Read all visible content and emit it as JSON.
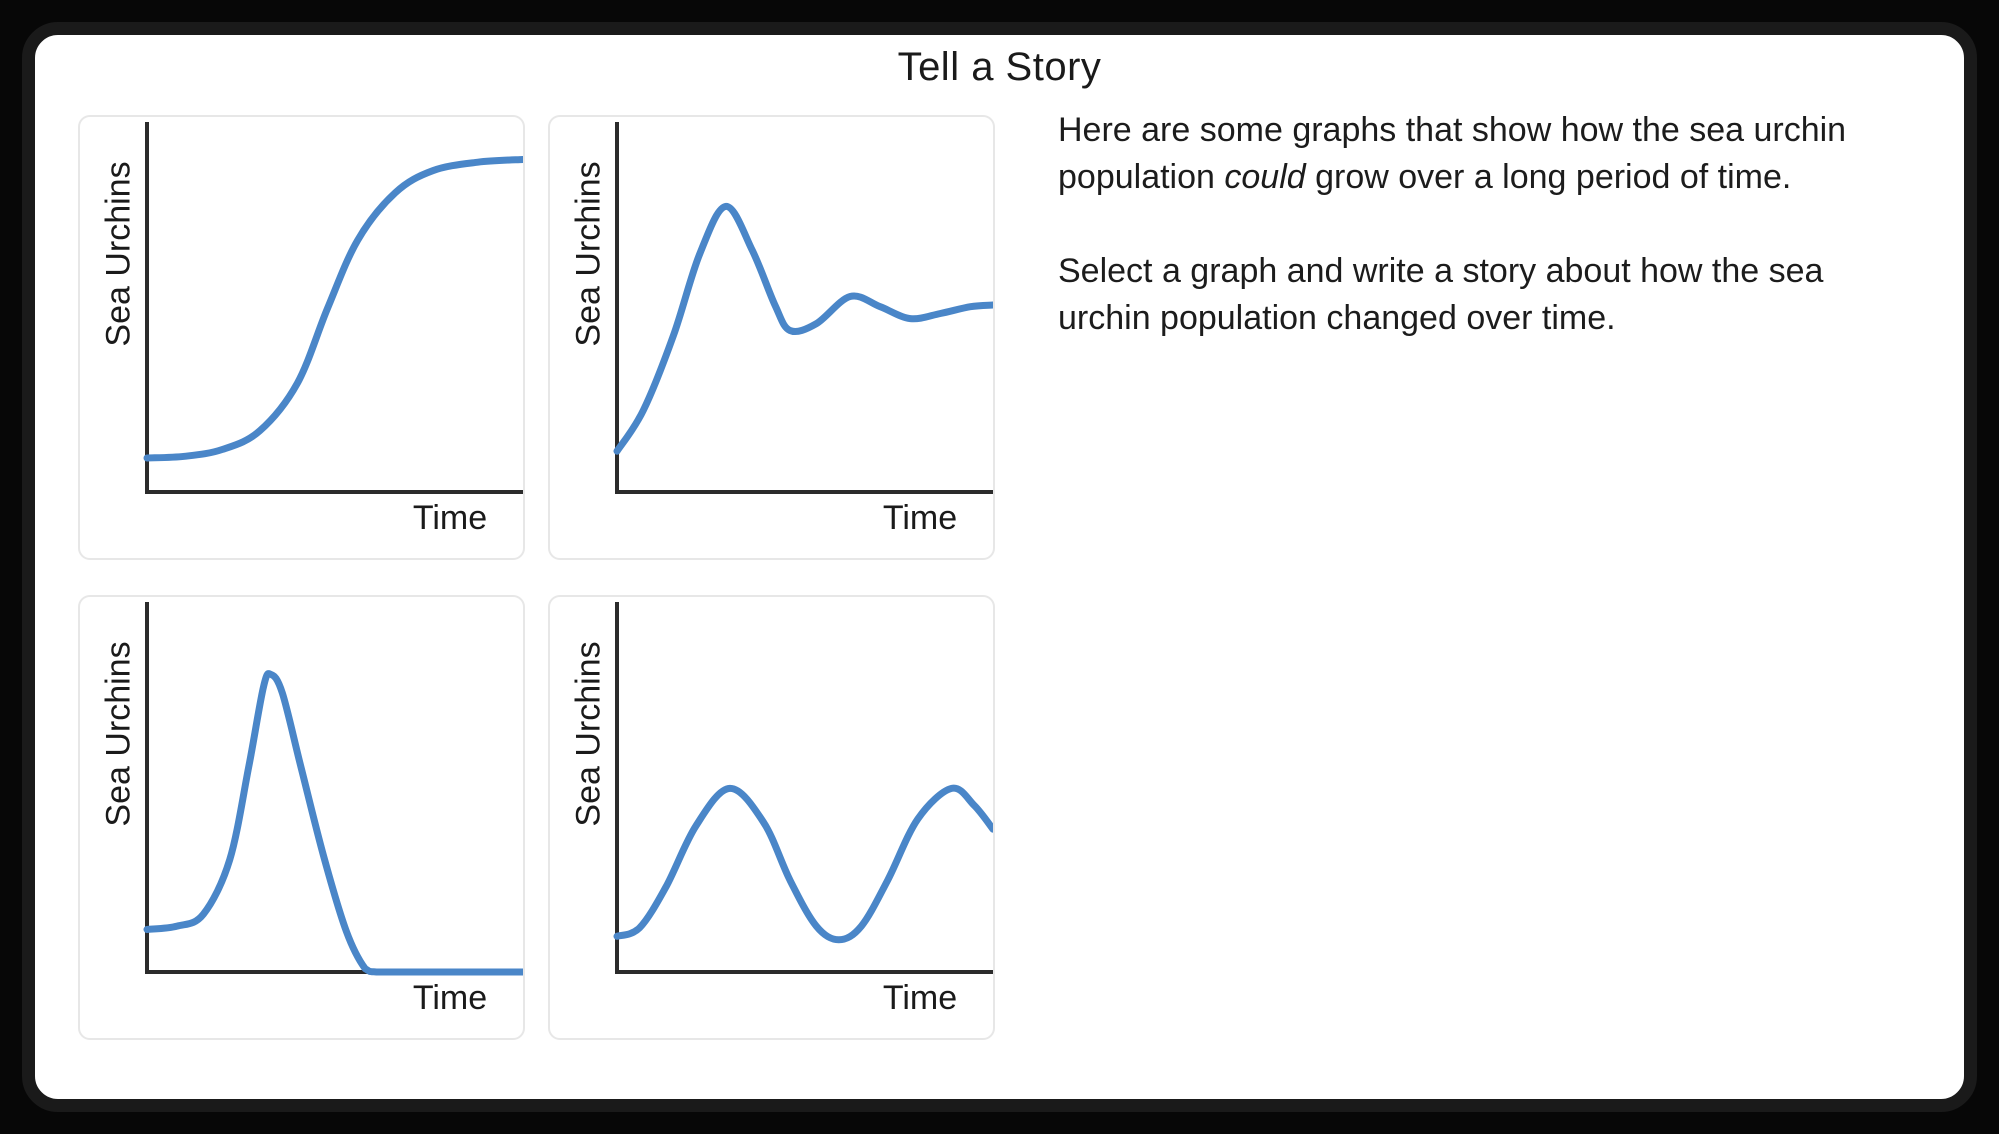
{
  "title": "Tell a Story",
  "instructions": {
    "paragraph1": {
      "before": "Here are some graphs that show how the sea urchin population ",
      "italic": "could",
      "after": " grow over a long period of time."
    },
    "paragraph2": "Select a graph and write a story about how the sea urchin population changed over time."
  },
  "accent_color": "#4a86c8",
  "axis_color": "#2b2b2b",
  "chart_data": [
    {
      "type": "line",
      "name": "logistic-growth",
      "xlabel": "Time",
      "ylabel": "Sea Urchins",
      "xlim": [
        0,
        100
      ],
      "ylim": [
        0,
        100
      ],
      "grid": false,
      "description": "Population starts low, grows slowly, then rapidly, then levels off at a maximum (S-curve).",
      "series": [
        {
          "name": "sea-urchin-population",
          "points": [
            [
              0,
              10
            ],
            [
              10,
              10.5
            ],
            [
              20,
              12.5
            ],
            [
              30,
              18
            ],
            [
              40,
              32
            ],
            [
              48,
              54
            ],
            [
              56,
              74
            ],
            [
              66,
              88
            ],
            [
              76,
              94.5
            ],
            [
              88,
              97
            ],
            [
              100,
              97.8
            ]
          ]
        }
      ]
    },
    {
      "type": "line",
      "name": "overshoot-damped-oscillation",
      "xlabel": "Time",
      "ylabel": "Sea Urchins",
      "xlim": [
        0,
        100
      ],
      "ylim": [
        0,
        100
      ],
      "grid": false,
      "description": "Population rises steeply, overshoots to a peak, dips, then oscillates with shrinking swings toward a steady level.",
      "series": [
        {
          "name": "sea-urchin-population",
          "points": [
            [
              0,
              12
            ],
            [
              7,
              24
            ],
            [
              15,
              46
            ],
            [
              22,
              70
            ],
            [
              29,
              84
            ],
            [
              36,
              71
            ],
            [
              42,
              55
            ],
            [
              46,
              47.5
            ],
            [
              53,
              49.5
            ],
            [
              62,
              57.5
            ],
            [
              70,
              54.5
            ],
            [
              78,
              51
            ],
            [
              86,
              52.5
            ],
            [
              94,
              54.5
            ],
            [
              100,
              55
            ]
          ]
        }
      ]
    },
    {
      "type": "line",
      "name": "boom-and-bust",
      "xlabel": "Time",
      "ylabel": "Sea Urchins",
      "xlim": [
        0,
        100
      ],
      "ylim": [
        0,
        100
      ],
      "grid": false,
      "description": "Population starts low, booms to a peak, crashes to zero, and stays at zero.",
      "series": [
        {
          "name": "sea-urchin-population",
          "points": [
            [
              0,
              12.5
            ],
            [
              8,
              13.5
            ],
            [
              15,
              17
            ],
            [
              22,
              33
            ],
            [
              27,
              60
            ],
            [
              31,
              84
            ],
            [
              33,
              87.5
            ],
            [
              36,
              82
            ],
            [
              41,
              60
            ],
            [
              47,
              34
            ],
            [
              53,
              12
            ],
            [
              58,
              1
            ],
            [
              61,
              0
            ],
            [
              70,
              0
            ],
            [
              100,
              0
            ]
          ]
        }
      ]
    },
    {
      "type": "line",
      "name": "repeating-oscillation",
      "xlabel": "Time",
      "ylabel": "Sea Urchins",
      "xlim": [
        0,
        100
      ],
      "ylim": [
        0,
        100
      ],
      "grid": false,
      "description": "Population cycles up and down in regular waves between a low and a high level.",
      "series": [
        {
          "name": "sea-urchin-population",
          "points": [
            [
              0,
              10.5
            ],
            [
              6,
              13
            ],
            [
              13,
              25
            ],
            [
              21,
              43
            ],
            [
              30,
              54
            ],
            [
              39,
              44
            ],
            [
              46,
              27
            ],
            [
              53,
              13.5
            ],
            [
              59,
              9.5
            ],
            [
              65,
              13.5
            ],
            [
              72,
              27
            ],
            [
              80,
              45
            ],
            [
              89,
              54
            ],
            [
              95,
              49
            ],
            [
              100,
              42
            ]
          ]
        }
      ]
    }
  ]
}
